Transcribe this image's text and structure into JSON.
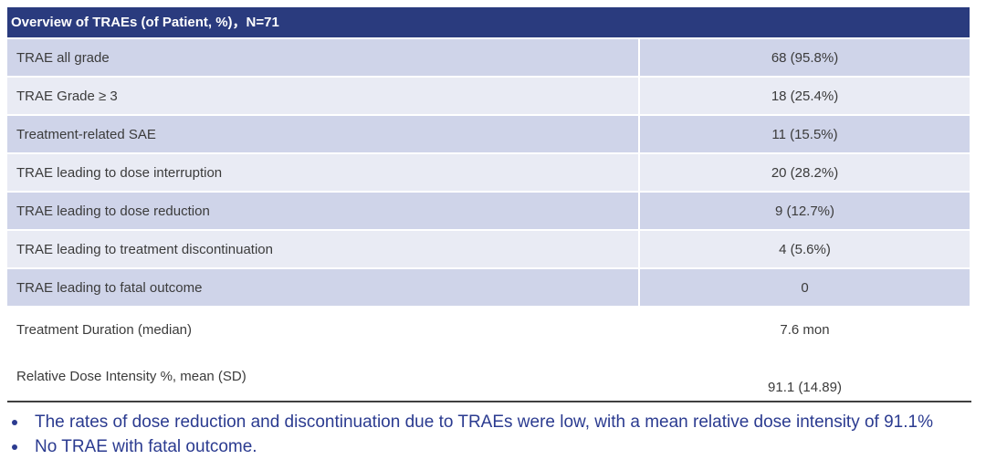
{
  "table": {
    "header": "Overview of TRAEs (of Patient, %)，N=71",
    "rows": [
      {
        "label": "TRAE all grade",
        "value": "68 (95.8%)"
      },
      {
        "label": "TRAE Grade ≥ 3",
        "value": "18 (25.4%)"
      },
      {
        "label": "Treatment-related SAE",
        "value": "11 (15.5%)"
      },
      {
        "label": "TRAE leading to dose interruption",
        "value": "20 (28.2%)"
      },
      {
        "label": "TRAE leading to dose reduction",
        "value": "9 (12.7%)"
      },
      {
        "label": "TRAE leading to treatment discontinuation",
        "value": "4 (5.6%)"
      },
      {
        "label": "TRAE leading to fatal outcome",
        "value": "0"
      },
      {
        "label": "Treatment Duration (median)",
        "value": "7.6 mon"
      },
      {
        "label": "Relative Dose Intensity %, mean (SD)",
        "value": "91.1 (14.89)"
      }
    ]
  },
  "notes": [
    "The rates of dose reduction and discontinuation due to TRAEs were low, with a mean relative dose intensity of 91.1%",
    "No TRAE with fatal outcome."
  ],
  "colors": {
    "header_bg": "#2A3B7E",
    "row_dark": "#CFD4E9",
    "row_light": "#E9EBF4",
    "note_text": "#2B3B90",
    "body_text": "#3B3B3B",
    "rule": "#3F3F3F"
  }
}
